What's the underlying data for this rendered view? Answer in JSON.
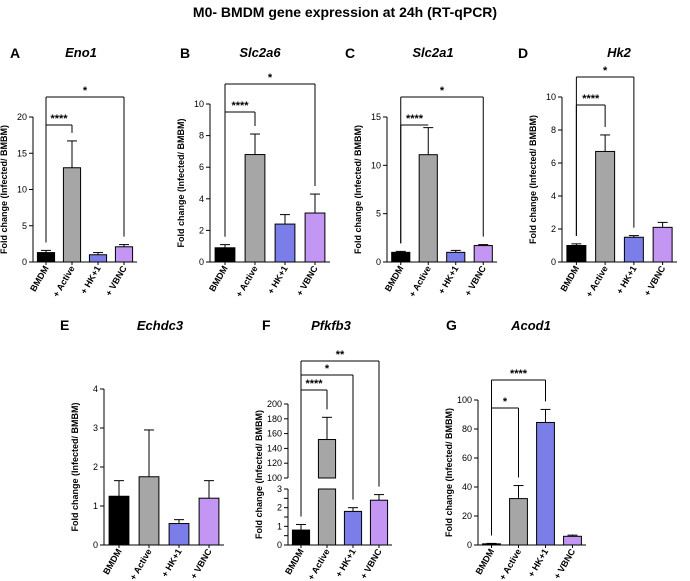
{
  "figure": {
    "title": "M0- BMDM gene expression at 24h (RT-qPCR)"
  },
  "colors": {
    "BMDM": "#000000",
    "+ Active": "#a6a6a6",
    "+ HK+1": "#7b7ee8",
    "+ VBNC": "#c296f2",
    "axis": "#000000"
  },
  "chart_data": [
    {
      "panel": "A",
      "type": "bar",
      "title": "Eno1",
      "ylabel": "Fold change (Infected/ BMBM)",
      "categories": [
        "BMDM",
        "+ Active",
        "+ HK+1",
        "+ VBNC"
      ],
      "values": [
        1.3,
        13.0,
        1.0,
        2.1
      ],
      "errors": [
        0.3,
        3.7,
        0.3,
        0.3
      ],
      "ylim": [
        0,
        20
      ],
      "yticks": [
        0,
        5,
        10,
        15,
        20
      ],
      "significance": [
        {
          "from": 0,
          "to": 1,
          "label": "****"
        },
        {
          "from": 0,
          "to": 3,
          "label": "*"
        }
      ]
    },
    {
      "panel": "B",
      "type": "bar",
      "title": "Slc2a6",
      "ylabel": "Fold change (Infected/ BMBM)",
      "categories": [
        "BMDM",
        "+ Active",
        "+ HK+1",
        "+ VBNC"
      ],
      "values": [
        0.9,
        6.8,
        2.4,
        3.1
      ],
      "errors": [
        0.2,
        1.3,
        0.6,
        1.2
      ],
      "ylim": [
        0,
        10
      ],
      "yticks": [
        0,
        2,
        4,
        6,
        8,
        10
      ],
      "significance": [
        {
          "from": 0,
          "to": 1,
          "label": "****"
        },
        {
          "from": 0,
          "to": 3,
          "label": "*"
        }
      ]
    },
    {
      "panel": "C",
      "type": "bar",
      "title": "Slc2a1",
      "ylabel": "Fold change (Infected/ BMBM)",
      "categories": [
        "BMDM",
        "+ Active",
        "+ HK+1",
        "+ VBNC"
      ],
      "values": [
        1.0,
        11.1,
        1.0,
        1.7
      ],
      "errors": [
        0.1,
        2.8,
        0.2,
        0.1
      ],
      "ylim": [
        0,
        15
      ],
      "yticks": [
        0,
        5,
        10,
        15
      ],
      "significance": [
        {
          "from": 0,
          "to": 1,
          "label": "****"
        },
        {
          "from": 0,
          "to": 3,
          "label": "*"
        }
      ]
    },
    {
      "panel": "D",
      "type": "bar",
      "title": "Hk2",
      "ylabel": "Fold change (Infected/ BMBM)",
      "categories": [
        "BMDM",
        "+ Active",
        "+ HK+1",
        "+ VBNC"
      ],
      "values": [
        1.0,
        6.7,
        1.5,
        2.1
      ],
      "errors": [
        0.1,
        1.0,
        0.1,
        0.3
      ],
      "ylim": [
        0,
        10
      ],
      "yticks": [
        0,
        2,
        4,
        6,
        8,
        10
      ],
      "significance": [
        {
          "from": 0,
          "to": 1,
          "label": "****"
        },
        {
          "from": 0,
          "to": 2,
          "label": "*"
        }
      ]
    },
    {
      "panel": "E",
      "type": "bar",
      "title": "Echdc3",
      "ylabel": "Fold change (Infected/ BMBM)",
      "categories": [
        "BMDM",
        "+ Active",
        "+ HK+1",
        "+ VBNC"
      ],
      "values": [
        1.25,
        1.75,
        0.55,
        1.2
      ],
      "errors": [
        0.4,
        1.2,
        0.1,
        0.45
      ],
      "ylim": [
        0,
        4
      ],
      "yticks": [
        0,
        1,
        2,
        3,
        4
      ],
      "significance": []
    },
    {
      "panel": "F",
      "type": "bar",
      "title": "Pfkfb3",
      "ylabel": "Fold change (Infected/ BMBM)",
      "categories": [
        "BMDM",
        "+ Active",
        "+ HK+1",
        "+ VBNC"
      ],
      "values": [
        0.8,
        152,
        1.8,
        2.4
      ],
      "errors": [
        0.3,
        30,
        0.2,
        0.3
      ],
      "ylim": [
        0,
        200
      ],
      "yticks": [
        0,
        0.5,
        1,
        1.5,
        2,
        2.5,
        3,
        100,
        120,
        140,
        160,
        180,
        200
      ],
      "ytick_labels": [
        "0",
        "",
        "1",
        "",
        "2",
        "",
        "3",
        "100",
        "120",
        "140",
        "160",
        "180",
        "200"
      ],
      "axis_break": {
        "lower": [
          0,
          3
        ],
        "upper": [
          100,
          200
        ]
      },
      "significance": [
        {
          "from": 0,
          "to": 1,
          "label": "****"
        },
        {
          "from": 0,
          "to": 2,
          "label": "*"
        },
        {
          "from": 0,
          "to": 3,
          "label": "**"
        }
      ]
    },
    {
      "panel": "G",
      "type": "bar",
      "title": "Acod1",
      "ylabel": "Fold change (Infected/ BMBM)",
      "categories": [
        "BMDM",
        "+ Active",
        "+ HK+1",
        "+ VBNC"
      ],
      "values": [
        0.8,
        32,
        84.5,
        6
      ],
      "errors": [
        0.3,
        9,
        9,
        0.8
      ],
      "ylim": [
        0,
        100
      ],
      "yticks": [
        0,
        20,
        40,
        60,
        80,
        100
      ],
      "significance": [
        {
          "from": 0,
          "to": 1,
          "label": "*"
        },
        {
          "from": 0,
          "to": 2,
          "label": "****"
        }
      ]
    }
  ]
}
